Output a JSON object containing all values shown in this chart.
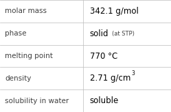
{
  "rows": [
    {
      "label": "molar mass",
      "value": "342.1 g/mol",
      "superscript": null,
      "small_suffix": null
    },
    {
      "label": "phase",
      "value": "solid",
      "superscript": null,
      "small_suffix": "(at STP)"
    },
    {
      "label": "melting point",
      "value": "770 °C",
      "superscript": null,
      "small_suffix": null
    },
    {
      "label": "density",
      "value": "2.71 g/cm",
      "superscript": "3",
      "small_suffix": null
    },
    {
      "label": "solubility in water",
      "value": "soluble",
      "superscript": null,
      "small_suffix": null
    }
  ],
  "col_split": 0.485,
  "background_color": "#ffffff",
  "line_color": "#bbbbbb",
  "label_color": "#404040",
  "value_color": "#000000",
  "label_fontsize": 7.5,
  "value_fontsize": 8.5,
  "small_fontsize": 6.0,
  "super_fontsize": 5.5
}
